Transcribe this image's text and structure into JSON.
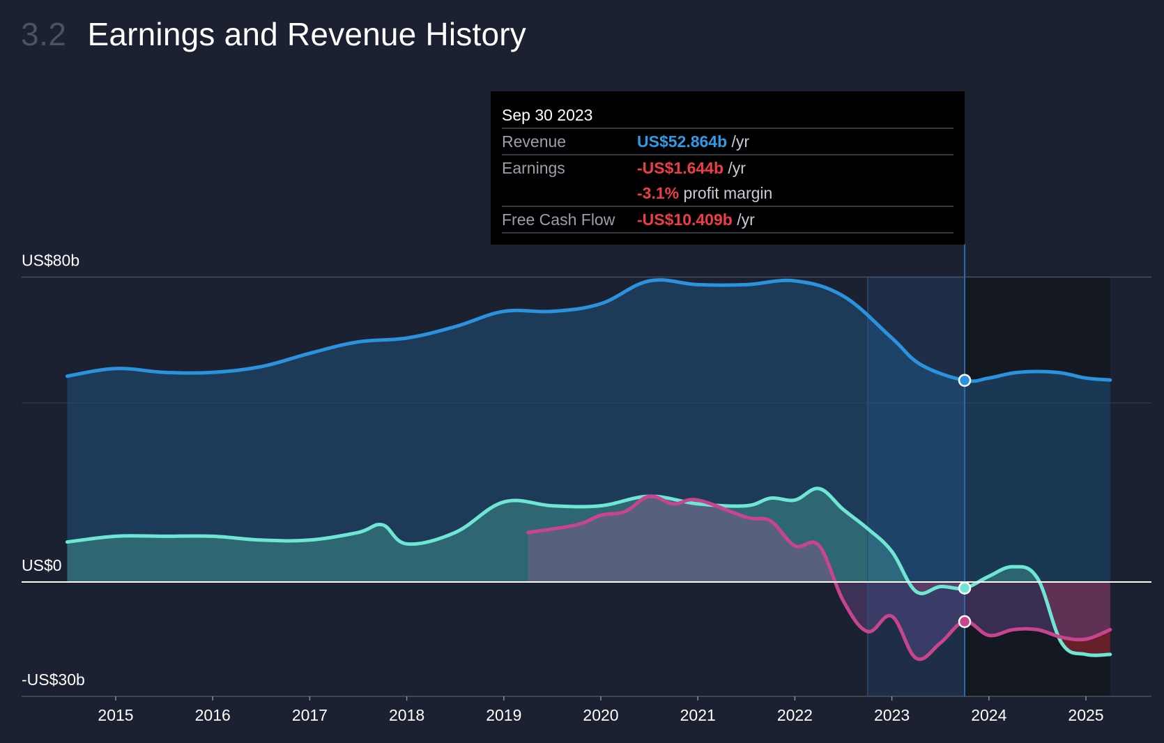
{
  "header": {
    "section_number": "3.2",
    "title": "Earnings and Revenue History"
  },
  "tooltip": {
    "date": "Sep 30 2023",
    "revenue": {
      "label": "Revenue",
      "value": "US$52.864b",
      "unit": "/yr"
    },
    "earnings": {
      "label": "Earnings",
      "value": "-US$1.644b",
      "unit": "/yr",
      "margin_value": "-3.1%",
      "margin_label": "profit margin"
    },
    "fcf": {
      "label": "Free Cash Flow",
      "value": "-US$10.409b",
      "unit": "/yr"
    }
  },
  "colors": {
    "background": "#1b2130",
    "revenue": "#2b92de",
    "earnings": "#6ee6d3",
    "fcf": "#c8458e",
    "negative_fill": "#a0262f"
  },
  "chart_data": {
    "type": "area",
    "title": "Earnings and Revenue History",
    "x_unit": "year",
    "xlim": [
      2014.0,
      2025.7
    ],
    "ylim": [
      -30,
      80
    ],
    "y_tick_labels": [
      {
        "value": 80,
        "label": "US$80b"
      },
      {
        "value": 0,
        "label": "US$0"
      },
      {
        "value": -30,
        "label": "-US$30b"
      }
    ],
    "x_ticks": [
      2015,
      2016,
      2017,
      2018,
      2019,
      2020,
      2021,
      2022,
      2023,
      2024,
      2025
    ],
    "highlight_point": {
      "x": 2023.75,
      "label": "Sep 30 2023"
    },
    "past_year_range": [
      2022.75,
      2023.75
    ],
    "forecast_start": 2023.75,
    "series": [
      {
        "name": "Revenue",
        "color": "#2b92de",
        "points": [
          [
            2014.5,
            54.0
          ],
          [
            2015.0,
            56.0
          ],
          [
            2015.5,
            55.0
          ],
          [
            2016.0,
            55.0
          ],
          [
            2016.5,
            56.5
          ],
          [
            2017.0,
            60.0
          ],
          [
            2017.5,
            63.0
          ],
          [
            2018.0,
            64.0
          ],
          [
            2018.5,
            67.0
          ],
          [
            2019.0,
            71.0
          ],
          [
            2019.5,
            71.0
          ],
          [
            2020.0,
            73.0
          ],
          [
            2020.5,
            79.0
          ],
          [
            2021.0,
            78.0
          ],
          [
            2021.5,
            78.0
          ],
          [
            2022.0,
            79.0
          ],
          [
            2022.5,
            75.0
          ],
          [
            2023.0,
            64.0
          ],
          [
            2023.3,
            57.0
          ],
          [
            2023.75,
            52.9
          ],
          [
            2024.0,
            53.5
          ],
          [
            2024.3,
            55.0
          ],
          [
            2024.7,
            55.0
          ],
          [
            2025.0,
            53.5
          ],
          [
            2025.25,
            53.0
          ]
        ]
      },
      {
        "name": "Earnings",
        "color": "#6ee6d3",
        "points": [
          [
            2014.5,
            10.5
          ],
          [
            2015.0,
            12.0
          ],
          [
            2015.5,
            12.0
          ],
          [
            2016.0,
            12.0
          ],
          [
            2016.5,
            11.0
          ],
          [
            2017.0,
            11.0
          ],
          [
            2017.5,
            13.0
          ],
          [
            2017.75,
            15.0
          ],
          [
            2018.0,
            10.0
          ],
          [
            2018.5,
            13.0
          ],
          [
            2019.0,
            21.0
          ],
          [
            2019.5,
            20.0
          ],
          [
            2020.0,
            20.0
          ],
          [
            2020.5,
            22.5
          ],
          [
            2021.0,
            20.5
          ],
          [
            2021.5,
            20.0
          ],
          [
            2021.75,
            22.0
          ],
          [
            2022.0,
            21.5
          ],
          [
            2022.25,
            24.5
          ],
          [
            2022.5,
            19.0
          ],
          [
            2022.75,
            14.0
          ],
          [
            2023.0,
            8.0
          ],
          [
            2023.25,
            -2.5
          ],
          [
            2023.5,
            -1.2
          ],
          [
            2023.75,
            -1.6
          ],
          [
            2024.0,
            1.5
          ],
          [
            2024.25,
            4.0
          ],
          [
            2024.5,
            1.0
          ],
          [
            2024.75,
            -16.0
          ],
          [
            2025.0,
            -19.0
          ],
          [
            2025.25,
            -19.0
          ]
        ]
      },
      {
        "name": "Free Cash Flow",
        "color": "#c8458e",
        "points": [
          [
            2019.25,
            13.0
          ],
          [
            2019.75,
            15.0
          ],
          [
            2020.0,
            17.5
          ],
          [
            2020.25,
            18.5
          ],
          [
            2020.5,
            22.5
          ],
          [
            2020.75,
            20.5
          ],
          [
            2021.0,
            21.5
          ],
          [
            2021.5,
            17.0
          ],
          [
            2021.75,
            16.0
          ],
          [
            2022.0,
            9.5
          ],
          [
            2022.25,
            9.5
          ],
          [
            2022.5,
            -5.0
          ],
          [
            2022.75,
            -13.0
          ],
          [
            2023.0,
            -9.0
          ],
          [
            2023.25,
            -20.0
          ],
          [
            2023.5,
            -16.0
          ],
          [
            2023.75,
            -10.4
          ],
          [
            2024.0,
            -14.0
          ],
          [
            2024.25,
            -12.5
          ],
          [
            2024.5,
            -12.5
          ],
          [
            2024.75,
            -14.5
          ],
          [
            2025.0,
            -15.0
          ],
          [
            2025.25,
            -12.5
          ]
        ]
      }
    ]
  }
}
